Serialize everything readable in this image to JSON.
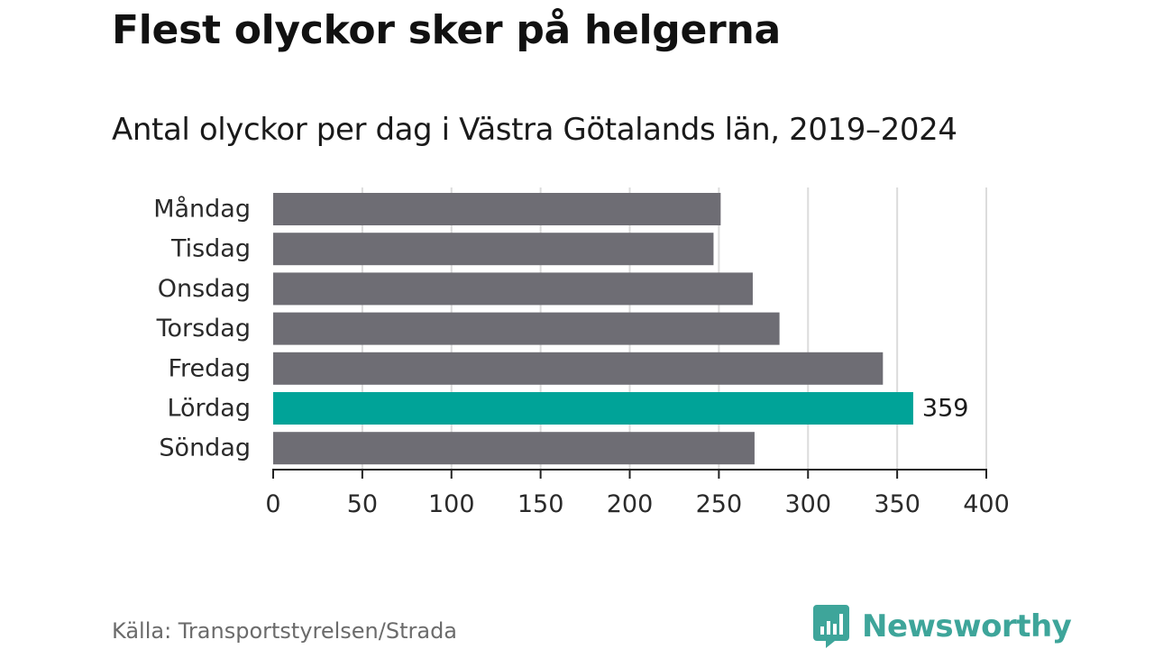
{
  "title": "Flest olyckor sker på helgerna",
  "subtitle": "Antal olyckor per dag i Västra Götalands län, 2019–2024",
  "source": "Källa: Transportstyrelsen/Strada",
  "brand": {
    "name": "Newsworthy",
    "logo_icon": "bar-chart-speech-bubble-icon",
    "color": "#3ea59a"
  },
  "colors": {
    "bar": "#6e6d74",
    "highlight": "#00a398",
    "grid": "#dcdcdc",
    "axis": "#222222"
  },
  "chart_data": {
    "type": "bar",
    "orientation": "horizontal",
    "categories": [
      "Måndag",
      "Tisdag",
      "Onsdag",
      "Torsdag",
      "Fredag",
      "Lördag",
      "Söndag"
    ],
    "values": [
      251,
      247,
      269,
      284,
      342,
      359,
      270
    ],
    "highlight_index": 5,
    "data_labels": [
      {
        "index": 5,
        "text": "359"
      }
    ],
    "xlim": [
      0,
      400
    ],
    "x_ticks": [
      0,
      50,
      100,
      150,
      200,
      250,
      300,
      350,
      400
    ],
    "x_tick_labels": [
      "0",
      "50",
      "100",
      "150",
      "200",
      "250",
      "300",
      "350",
      "400"
    ],
    "grid": true,
    "legend": "none"
  }
}
